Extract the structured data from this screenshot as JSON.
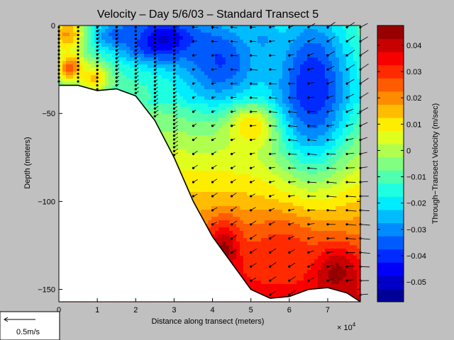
{
  "chart_data": {
    "type": "heatmap",
    "title": "Velocity – Day 5/6/03 – Standard Transect 5",
    "xlabel": "Distance along transect (meters)",
    "ylabel": "Depth (meters)",
    "x_exponent_label": "× 10",
    "x_exponent_power": "4",
    "x_scale": 10000,
    "xlim": [
      0,
      78500
    ],
    "ylim": [
      -157,
      0
    ],
    "x_ticks": [
      0,
      1,
      2,
      3,
      4,
      5,
      6,
      7
    ],
    "x_tick_labels": [
      "0",
      "1",
      "2",
      "3",
      "4",
      "5",
      "6",
      "7"
    ],
    "y_ticks": [
      0,
      -50,
      -100,
      -150
    ],
    "y_tick_labels": [
      "0",
      "−50",
      "−100",
      "−150"
    ],
    "colorbar": {
      "label": "Through−Transect Velocity (m/sec)",
      "range": [
        -0.0575,
        0.0475
      ],
      "ticks": [
        0.04,
        0.03,
        0.02,
        0.01,
        0,
        -0.01,
        -0.02,
        -0.03,
        -0.04,
        -0.05
      ],
      "tick_labels": [
        "0.04",
        "0.03",
        "0.02",
        "0.01",
        "0",
        "−0.01",
        "−0.02",
        "−0.03",
        "−0.04",
        "−0.05"
      ]
    },
    "bathymetry": {
      "x": [
        0,
        5000,
        10000,
        15000,
        20000,
        25000,
        30000,
        35000,
        40000,
        45000,
        50000,
        55000,
        60000,
        65000,
        70000,
        75000,
        78500
      ],
      "depth": [
        -34,
        -34,
        -37,
        -36,
        -40,
        -54,
        -75,
        -100,
        -120,
        -135,
        -150,
        -155,
        -154,
        -150,
        -149,
        -152,
        -157
      ]
    },
    "velocity_features": [
      {
        "x": 27000,
        "depth": -8,
        "value": -0.052,
        "rx": 12000,
        "ry": 14
      },
      {
        "x": 16000,
        "depth": -5,
        "value": -0.035,
        "rx": 8000,
        "ry": 8
      },
      {
        "x": 42000,
        "depth": -20,
        "value": -0.038,
        "rx": 11000,
        "ry": 25
      },
      {
        "x": 66000,
        "depth": -35,
        "value": -0.042,
        "rx": 10000,
        "ry": 45
      },
      {
        "x": 53000,
        "depth": -8,
        "value": -0.028,
        "rx": 5000,
        "ry": 12
      },
      {
        "x": 2000,
        "depth": -5,
        "value": 0.018,
        "rx": 5000,
        "ry": 10
      },
      {
        "x": 3000,
        "depth": -24,
        "value": 0.026,
        "rx": 3500,
        "ry": 8
      },
      {
        "x": 9000,
        "depth": -30,
        "value": 0.014,
        "rx": 4000,
        "ry": 8
      },
      {
        "x": 50000,
        "depth": -58,
        "value": 0.012,
        "rx": 6000,
        "ry": 12
      },
      {
        "x": 43000,
        "depth": -128,
        "value": 0.045,
        "rx": 4500,
        "ry": 16
      },
      {
        "x": 72000,
        "depth": -140,
        "value": 0.045,
        "rx": 6000,
        "ry": 14
      },
      {
        "x": 58000,
        "depth": -128,
        "value": 0.03,
        "rx": 9000,
        "ry": 18
      }
    ],
    "profiles_x": [
      0,
      5000,
      10000,
      15000,
      20000,
      25000,
      30000,
      35000,
      40000,
      45000,
      50000,
      55000,
      60000,
      65000,
      70000,
      75000,
      78500
    ],
    "dense_profiles_x": [
      0,
      5000,
      10000,
      15000,
      20000,
      25000,
      30000
    ],
    "scale_arrow": {
      "label": "0.5m/s",
      "magnitude": 0.5
    }
  }
}
